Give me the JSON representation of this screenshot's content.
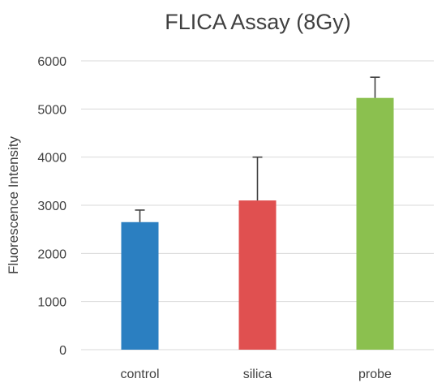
{
  "chart_data": {
    "type": "bar",
    "title": "FLICA Assay (8Gy)",
    "xlabel": "",
    "ylabel": "Fluorescence Intensity",
    "categories": [
      "control",
      "silica",
      "probe"
    ],
    "values": [
      2650,
      3100,
      5230
    ],
    "error_plus": [
      250,
      900,
      430
    ],
    "ylim": [
      0,
      6000
    ],
    "yticks": [
      0,
      1000,
      2000,
      3000,
      4000,
      5000,
      6000
    ],
    "grid": true,
    "legend": "none",
    "colors": [
      "#2b7fc1",
      "#e05050",
      "#8bc04f"
    ],
    "errorbar_color": "#404040",
    "grid_color": "#d9d9d9"
  }
}
